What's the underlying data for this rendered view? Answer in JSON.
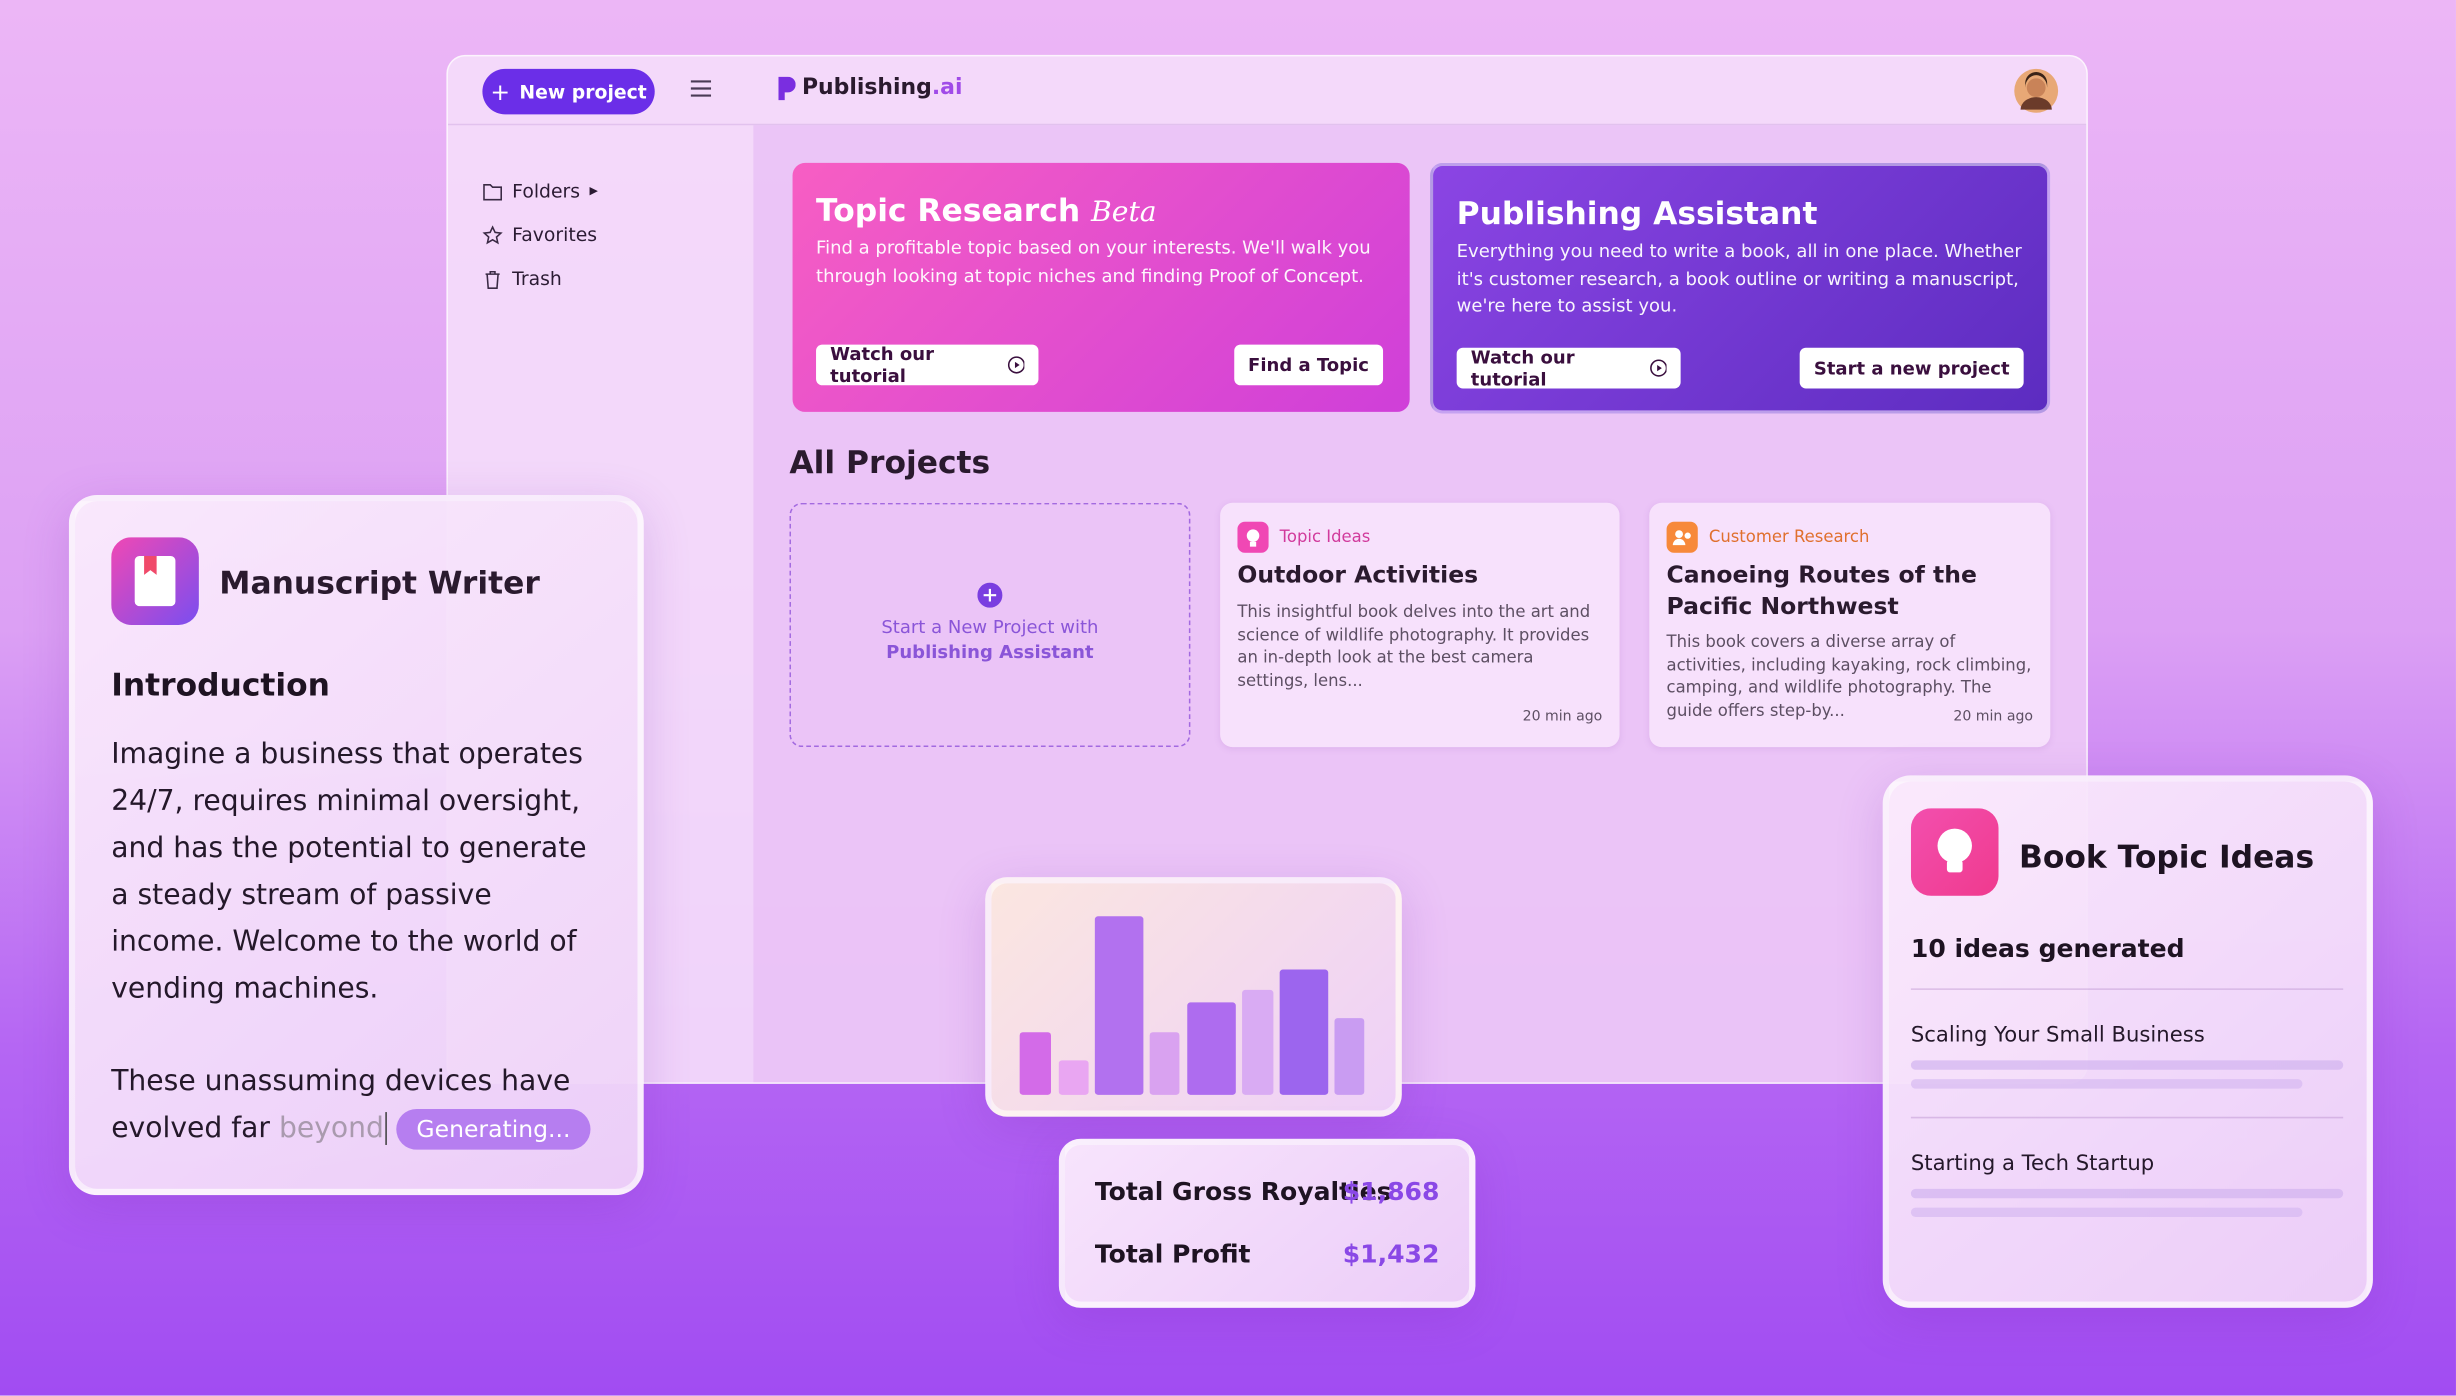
{
  "header": {
    "new_project": "New project",
    "logo_main": "Publishing",
    "logo_suffix": ".ai"
  },
  "sidebar": {
    "items": [
      "Folders",
      "Favorites",
      "Trash"
    ]
  },
  "hero_cards": [
    {
      "title": "Topic Research",
      "badge": "Beta",
      "description": "Find a profitable topic based on your interests. We'll walk you through looking at topic niches and finding Proof of Concept.",
      "secondary_button": "Watch our tutorial",
      "primary_button": "Find a Topic"
    },
    {
      "title": "Publishing Assistant",
      "description": "Everything you need to write a book, all in one place. Whether it's customer research, a book outline or writing a manuscript, we're here to assist you.",
      "secondary_button": "Watch our tutorial",
      "primary_button": "Start a new project"
    }
  ],
  "projects": {
    "heading": "All Projects",
    "new_card": {
      "line1": "Start a New Project with",
      "line2": "Publishing Assistant"
    },
    "items": [
      {
        "tag": "Topic Ideas",
        "title": "Outdoor Activities",
        "description": "This insightful book delves into the art and science of wildlife photography. It provides an in-depth look at the best camera settings, lens...",
        "time": "20 min ago"
      },
      {
        "tag": "Customer Research",
        "title": "Canoeing Routes of the Pacific Northwest",
        "description": "This book covers a diverse array of activities, including kayaking, rock climbing, camping, and wildlife photography. The guide offers step-by...",
        "time": "20 min ago"
      }
    ]
  },
  "manuscript": {
    "title": "Manuscript Writer",
    "heading": "Introduction",
    "paragraph1": "Imagine a business that operates 24/7, requires minimal oversight, and has the potential to generate a steady stream of passive income. Welcome to the world of vending machines.",
    "paragraph2": "These unassuming devices have evolved far",
    "ghost_text": "beyond",
    "status": "Generating..."
  },
  "royalties": {
    "rows": [
      {
        "label": "Total Gross Royalties",
        "value": "$1,868"
      },
      {
        "label": "Total Profit",
        "value": "$1,432"
      }
    ]
  },
  "book_topics": {
    "title": "Book Topic Ideas",
    "count_text": "10 ideas generated",
    "ideas": [
      "Scaling Your Small Business",
      "Starting a Tech Startup"
    ]
  }
}
